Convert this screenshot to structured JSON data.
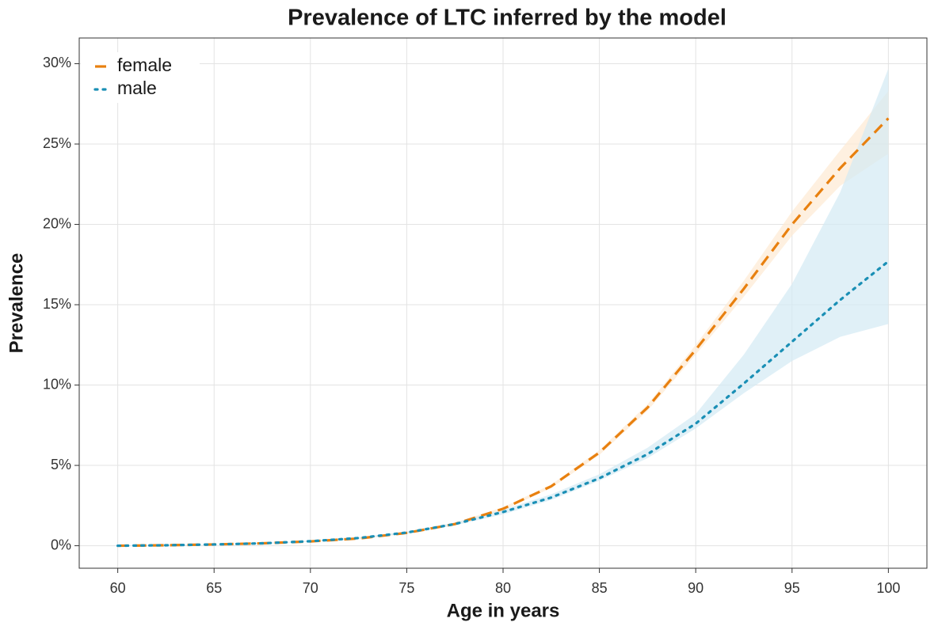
{
  "chart_data": {
    "type": "line",
    "title": "Prevalence of LTC inferred by the model",
    "x_label": "Age in years",
    "y_label": "Prevalence",
    "x": [
      60,
      62.5,
      65,
      67.5,
      70,
      72.5,
      75,
      77.5,
      80,
      82.5,
      85,
      87.5,
      90,
      92.5,
      95,
      97.5,
      100
    ],
    "series": [
      {
        "name": "female",
        "color": "#e8800f",
        "band_color": "#fde9d3",
        "dash": "dashed",
        "values": [
          0,
          0.03,
          0.08,
          0.15,
          0.27,
          0.45,
          0.8,
          1.35,
          2.3,
          3.7,
          5.8,
          8.6,
          12.2,
          16.0,
          20.0,
          23.5,
          26.6
        ],
        "lower": [
          0,
          0.02,
          0.07,
          0.13,
          0.24,
          0.41,
          0.74,
          1.27,
          2.2,
          3.6,
          5.65,
          8.4,
          11.9,
          15.5,
          19.3,
          22.4,
          24.4
        ],
        "upper": [
          0,
          0.04,
          0.1,
          0.17,
          0.3,
          0.5,
          0.86,
          1.43,
          2.4,
          3.8,
          5.95,
          8.8,
          12.5,
          16.5,
          20.8,
          24.6,
          28.3
        ]
      },
      {
        "name": "male",
        "color": "#1a8fb5",
        "band_color": "#d3e9f3",
        "dash": "dotted",
        "values": [
          0,
          0.03,
          0.08,
          0.15,
          0.28,
          0.48,
          0.82,
          1.35,
          2.1,
          3.0,
          4.2,
          5.7,
          7.6,
          10.1,
          12.7,
          15.3,
          17.7
        ],
        "lower": [
          0,
          0.02,
          0.07,
          0.13,
          0.25,
          0.44,
          0.76,
          1.27,
          1.95,
          2.85,
          4.05,
          5.45,
          7.3,
          9.5,
          11.5,
          13.0,
          13.8
        ],
        "upper": [
          0,
          0.04,
          0.09,
          0.17,
          0.31,
          0.52,
          0.88,
          1.44,
          2.25,
          3.2,
          4.45,
          6.1,
          8.2,
          11.9,
          16.3,
          22.0,
          29.7
        ]
      }
    ],
    "xlim": [
      58,
      102
    ],
    "xticks": [
      60,
      65,
      70,
      75,
      80,
      85,
      90,
      95,
      100
    ],
    "ylim": [
      -1.4,
      31.6
    ],
    "yticks": [
      {
        "value": 0,
        "label": "0%"
      },
      {
        "value": 5,
        "label": "5%"
      },
      {
        "value": 10,
        "label": "10%"
      },
      {
        "value": 15,
        "label": "15%"
      },
      {
        "value": 20,
        "label": "20%"
      },
      {
        "value": 25,
        "label": "25%"
      },
      {
        "value": 30,
        "label": "30%"
      }
    ],
    "grid": true,
    "legend_position": "top-left"
  }
}
